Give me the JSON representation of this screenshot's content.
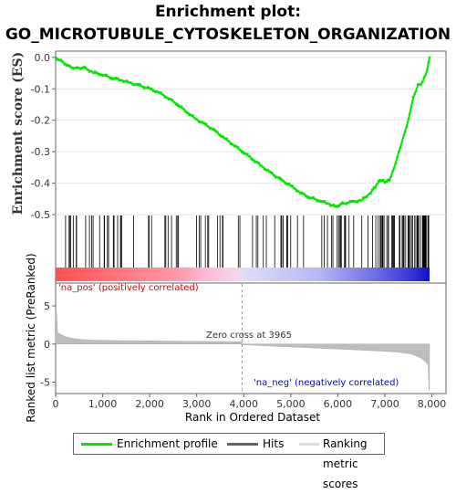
{
  "title_line1": "Enrichment plot:",
  "title_line2": "GO_MICROTUBULE_CYTOSKELETON_ORGANIZATION",
  "chart_data": {
    "type": "line",
    "es_curve": {
      "ylabel": "Enrichment score (ES)",
      "ylim": [
        -0.5,
        0.02
      ],
      "yticks": [
        "0.0",
        "-0.1",
        "-0.2",
        "-0.3",
        "-0.4",
        "-0.5"
      ],
      "ytick_values": [
        0.0,
        -0.1,
        -0.2,
        -0.3,
        -0.4,
        -0.5
      ],
      "points": [
        [
          0,
          0.0
        ],
        [
          150,
          -0.015
        ],
        [
          300,
          -0.03
        ],
        [
          450,
          -0.035
        ],
        [
          600,
          -0.032
        ],
        [
          800,
          -0.048
        ],
        [
          1000,
          -0.055
        ],
        [
          1200,
          -0.065
        ],
        [
          1400,
          -0.072
        ],
        [
          1600,
          -0.082
        ],
        [
          1800,
          -0.09
        ],
        [
          2000,
          -0.1
        ],
        [
          2200,
          -0.112
        ],
        [
          2400,
          -0.13
        ],
        [
          2600,
          -0.15
        ],
        [
          2800,
          -0.175
        ],
        [
          3000,
          -0.198
        ],
        [
          3200,
          -0.215
        ],
        [
          3400,
          -0.235
        ],
        [
          3600,
          -0.258
        ],
        [
          3800,
          -0.28
        ],
        [
          4000,
          -0.302
        ],
        [
          4200,
          -0.325
        ],
        [
          4400,
          -0.348
        ],
        [
          4600,
          -0.37
        ],
        [
          4800,
          -0.39
        ],
        [
          5000,
          -0.408
        ],
        [
          5200,
          -0.43
        ],
        [
          5400,
          -0.445
        ],
        [
          5600,
          -0.455
        ],
        [
          5800,
          -0.465
        ],
        [
          5950,
          -0.475
        ],
        [
          6100,
          -0.465
        ],
        [
          6300,
          -0.46
        ],
        [
          6500,
          -0.455
        ],
        [
          6700,
          -0.43
        ],
        [
          6800,
          -0.41
        ],
        [
          6900,
          -0.39
        ],
        [
          7000,
          -0.395
        ],
        [
          7100,
          -0.39
        ],
        [
          7200,
          -0.35
        ],
        [
          7300,
          -0.3
        ],
        [
          7400,
          -0.25
        ],
        [
          7500,
          -0.2
        ],
        [
          7600,
          -0.13
        ],
        [
          7700,
          -0.09
        ],
        [
          7800,
          -0.08
        ],
        [
          7900,
          -0.04
        ],
        [
          7950,
          0.0
        ]
      ]
    },
    "metric": {
      "ylabel": "Ranked list metric (PreRanked)",
      "xlabel": "Rank in Ordered Dataset",
      "xlim": [
        0,
        8300
      ],
      "ylim": [
        -6.5,
        8
      ],
      "xticks": [
        "0",
        "1,000",
        "2,000",
        "3,000",
        "4,000",
        "5,000",
        "6,000",
        "7,000",
        "8,000"
      ],
      "xtick_values": [
        0,
        1000,
        2000,
        3000,
        4000,
        5000,
        6000,
        7000,
        8000
      ],
      "yticks": [
        "5",
        "0",
        "-5"
      ],
      "ytick_values": [
        5,
        0,
        -5
      ],
      "total_genes": 7950,
      "zero_cross": 3965,
      "zero_cross_label": "Zero cross at 3965",
      "pos_label": "'na_pos' (positively correlated)",
      "neg_label": "'na_neg' (negatively correlated)"
    },
    "hits_description": "gene set member positions",
    "legend": [
      "Enrichment profile",
      "Hits",
      "Ranking metric scores"
    ],
    "colors": {
      "es_line": "#00e600",
      "hits": "#000000",
      "metric_fill": "#bdbdbd",
      "pos_text": "#e00000",
      "neg_text": "#0000dd",
      "zero_line": "#999999"
    }
  }
}
